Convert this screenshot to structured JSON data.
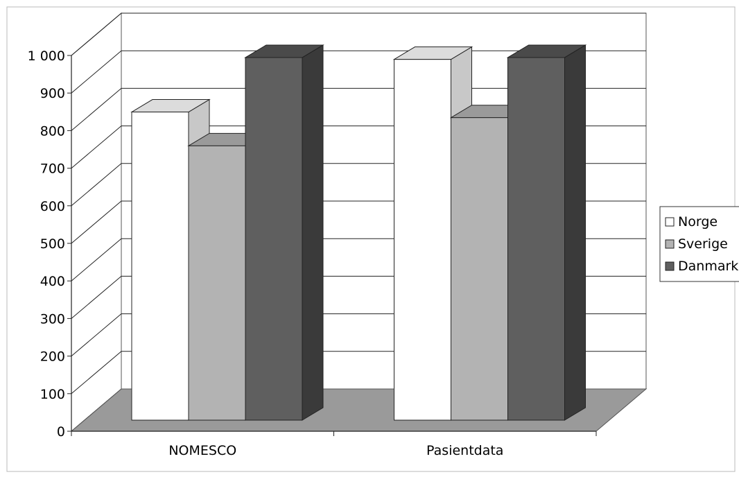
{
  "chart_data": {
    "type": "bar",
    "title": "",
    "xlabel": "",
    "ylabel": "",
    "categories": [
      "NOMESCO",
      "Pasientdata"
    ],
    "series": [
      {
        "name": "Norge",
        "values": [
          820,
          960
        ]
      },
      {
        "name": "Sverige",
        "values": [
          730,
          805
        ]
      },
      {
        "name": "Danmark",
        "values": [
          965,
          965
        ]
      }
    ],
    "ylim": [
      0,
      1000
    ],
    "yticks": [
      {
        "value": 0,
        "label": "0"
      },
      {
        "value": 100,
        "label": "100"
      },
      {
        "value": 200,
        "label": "200"
      },
      {
        "value": 300,
        "label": "300"
      },
      {
        "value": 400,
        "label": "400"
      },
      {
        "value": 500,
        "label": "500"
      },
      {
        "value": 600,
        "label": "600"
      },
      {
        "value": 700,
        "label": "700"
      },
      {
        "value": 800,
        "label": "800"
      },
      {
        "value": 900,
        "label": "900"
      },
      {
        "value": 1000,
        "label": "1 000"
      }
    ],
    "grid": true,
    "three_d": true,
    "legend": "right",
    "colors": {
      "Norge": "#ffffff",
      "Sverige": "#b3b3b3",
      "Danmark": "#5f5f5f",
      "floor": "#9a9a9a"
    }
  }
}
